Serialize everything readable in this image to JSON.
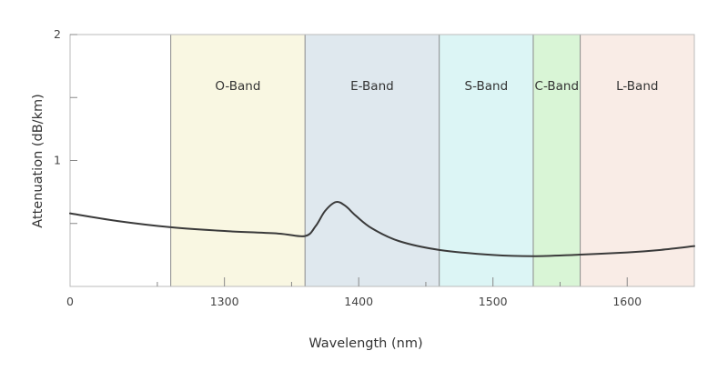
{
  "chart_data": {
    "type": "line",
    "title": "",
    "xlabel": "Wavelength (nm)",
    "ylabel": "Attenuation (dB/km)",
    "xlim": [
      1185,
      1650
    ],
    "ylim": [
      0,
      2
    ],
    "x_ticks": [
      1300,
      1400,
      1500,
      1600
    ],
    "x_minor_ticks": [
      1250,
      1350,
      1450,
      1550
    ],
    "x_origin_label": "0",
    "y_ticks": [
      1,
      2
    ],
    "y_minor_ticks": [
      0.5,
      1.5
    ],
    "grid": false,
    "bands": [
      {
        "name": "O-Band",
        "from": 1260,
        "to": 1360,
        "color": "#f9f7e2"
      },
      {
        "name": "E-Band",
        "from": 1360,
        "to": 1460,
        "color": "#dfe8ee"
      },
      {
        "name": "S-Band",
        "from": 1460,
        "to": 1530,
        "color": "#dcf5f5"
      },
      {
        "name": "C-Band",
        "from": 1530,
        "to": 1565,
        "color": "#d9f5d6"
      },
      {
        "name": "L-Band",
        "from": 1565,
        "to": 1650,
        "color": "#f9ece6"
      }
    ],
    "series": [
      {
        "color": "#3a3a3a",
        "x": [
          1185,
          1220,
          1260,
          1300,
          1340,
          1360,
          1368,
          1375,
          1383,
          1390,
          1398,
          1410,
          1430,
          1460,
          1500,
          1530,
          1560,
          1600,
          1625,
          1650
        ],
        "y": [
          0.58,
          0.52,
          0.47,
          0.44,
          0.42,
          0.4,
          0.48,
          0.6,
          0.67,
          0.64,
          0.56,
          0.46,
          0.36,
          0.29,
          0.25,
          0.24,
          0.25,
          0.27,
          0.29,
          0.32
        ]
      }
    ]
  }
}
